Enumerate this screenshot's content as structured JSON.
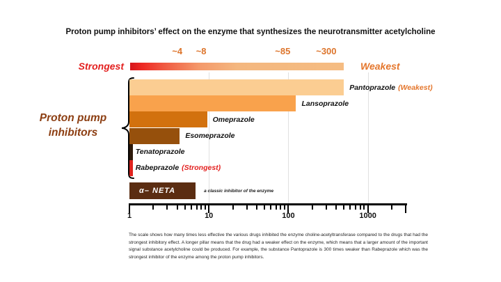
{
  "slide": {
    "title": "Proton pump inhibitors’ effect on the enzyme that synthesizes the neurotransmitter acetylcholine",
    "scale": {
      "strongest_label": "Strongest",
      "weakest_label": "Weakest"
    },
    "group_label": "Proton pump\ninhibitors",
    "caption": "The scale shows how many times less effective the various drugs inhibited the enzyme choline-acetyltransferase compared to the drugs that had the strongest inhibitory effect. A longer pillar means that the drug had a weaker effect on the enzyme, which means that a larger amount of the important signal substance acetylcholine could be produced. For example, the substance Pantoprazole is 300 times weaker than Rabeprazole which was the strongest inhibitor of the enzyme among the proton pump inhibitors."
  },
  "chart_data": {
    "type": "bar",
    "orientation": "horizontal",
    "x_scale": "log",
    "x_range": [
      1,
      3000
    ],
    "x_major_ticks": [
      1,
      10,
      100,
      1000
    ],
    "grid_decades": [
      10,
      100,
      1000
    ],
    "scale_ticks": [
      {
        "label": "~4",
        "value": 4
      },
      {
        "label": "~8",
        "value": 8
      },
      {
        "label": "~85",
        "value": 85
      },
      {
        "label": "~300",
        "value": 300
      }
    ],
    "series": [
      {
        "label": "Pantoprazole",
        "annotation": "(Weakest)",
        "annotation_color": "#E4762C",
        "approx_fold_weaker": 300,
        "plotted_extent": 500,
        "color": "#FBCD92"
      },
      {
        "label": "Lansoprazole",
        "approx_fold_weaker": 85,
        "plotted_extent": 125,
        "color": "#F9A24C"
      },
      {
        "label": "Omeprazole",
        "approx_fold_weaker": 8,
        "plotted_extent": 9.5,
        "color": "#D2710E"
      },
      {
        "label": "Esomeprazole",
        "approx_fold_weaker": 4,
        "plotted_extent": 4.3,
        "color": "#96500C"
      },
      {
        "label": "Tenatoprazole",
        "plotted_extent": 1.1,
        "color": "#2E1A0B"
      },
      {
        "label": "Rabeprazole",
        "annotation": "(Strongest)",
        "annotation_color": "#E3201F",
        "approx_fold_weaker": 1,
        "plotted_extent": 1.1,
        "color": "#E0231E"
      },
      {
        "label": "α– NETA",
        "note": "a classic inhibitor of the enzyme",
        "plotted_extent": 6.8,
        "color": "#5B2D12",
        "inside_label": true,
        "group": "reference-inhibitor"
      }
    ]
  }
}
